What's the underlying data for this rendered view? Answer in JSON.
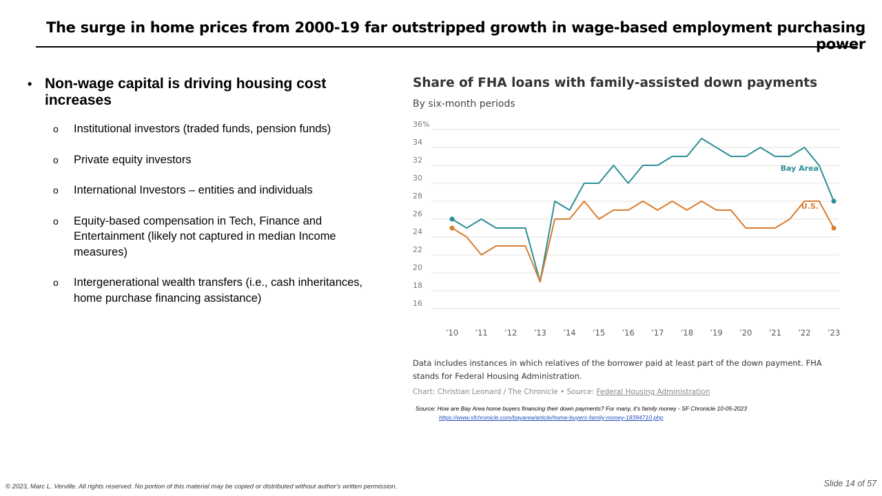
{
  "slide": {
    "title": "The surge in home prices from 2000-19 far outstripped growth in wage-based employment purchasing power",
    "main_bullet": "Non-wage capital is driving housing cost increases",
    "sub_bullets": [
      "Institutional investors (traded funds, pension funds)",
      "Private equity investors",
      "International Investors – entities and individuals",
      "Equity-based compensation in Tech, Finance and Entertainment (likely not captured in median Income measures)",
      "Intergenerational wealth transfers (i.e., cash inheritances, home purchase financing assistance)"
    ],
    "sub_bullet_marker": "o",
    "source": "Source: How are Bay Area home buyers financing their down payments? For many, it's family money - SF Chronicle 10-05-2023",
    "source_url": "https://www.sfchronicle.com/bayarea/article/home-buyers-family-money-18394710.php",
    "footer": "© 2023, Marc L. Verville.  All rights reserved.  No portion of this material may be copied or distributed without author's written permission.",
    "slide_number": "Slide 14 of 57"
  },
  "chart_data": {
    "type": "line",
    "title": "Share of FHA loans with family-assisted down payments",
    "subtitle": "By six-month periods",
    "y_ticks": [
      "36%",
      "34",
      "32",
      "30",
      "28",
      "26",
      "24",
      "22",
      "20",
      "18",
      "16"
    ],
    "ylim": [
      16,
      36
    ],
    "x_ticks": [
      "’10",
      "’11",
      "’12",
      "’13",
      "’14",
      "’15",
      "’16",
      "’17",
      "’18",
      "’19",
      "’20",
      "’21",
      "’22",
      "’23"
    ],
    "x": [
      2010,
      2010.5,
      2011,
      2011.5,
      2012,
      2012.5,
      2013,
      2013.5,
      2014,
      2014.5,
      2015,
      2015.5,
      2016,
      2016.5,
      2017,
      2017.5,
      2018,
      2018.5,
      2019,
      2019.5,
      2020,
      2020.5,
      2021,
      2021.5,
      2022,
      2022.5,
      2023
    ],
    "series": [
      {
        "name": "Bay Area",
        "color": "#2a8f94",
        "values": [
          26,
          25,
          26,
          25,
          25,
          25,
          19,
          28,
          27,
          30,
          30,
          32,
          30,
          32,
          32,
          33,
          33,
          35,
          34,
          33,
          33,
          34,
          33,
          33,
          34,
          32,
          28
        ]
      },
      {
        "name": "U.S.",
        "color": "#d77d2e",
        "values": [
          25,
          24,
          22,
          23,
          23,
          23,
          19,
          26,
          26,
          28,
          26,
          27,
          27,
          28,
          27,
          28,
          27,
          28,
          27,
          27,
          25,
          25,
          25,
          26,
          28,
          28,
          25
        ]
      }
    ],
    "note": "Data includes instances in which relatives of the borrower paid at least part of the down payment. FHA stands for Federal Housing Administration.",
    "credit_prefix": "Chart: Christian Leonard / The Chronicle • Source: ",
    "credit_link": "Federal Housing Administration",
    "grid": true,
    "legend": "inline labels at right"
  }
}
